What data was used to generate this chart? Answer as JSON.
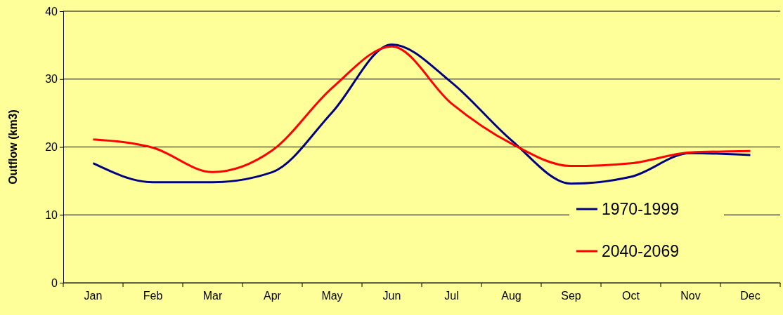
{
  "chart_data": {
    "type": "line",
    "ylabel": "Outflow (km3)",
    "categories": [
      "Jan",
      "Feb",
      "Mar",
      "Apr",
      "May",
      "Jun",
      "Jul",
      "Aug",
      "Sep",
      "Oct",
      "Nov",
      "Dec"
    ],
    "series": [
      {
        "name": "1970-1999",
        "color": "#000080",
        "values": [
          17.6,
          14.8,
          14.8,
          16.3,
          25.1,
          35.1,
          29.5,
          21.0,
          14.6,
          15.6,
          19.1,
          18.8
        ]
      },
      {
        "name": "2040-2069",
        "color": "#ff0000",
        "values": [
          21.1,
          19.9,
          16.3,
          19.5,
          28.7,
          34.8,
          26.4,
          20.5,
          17.2,
          17.6,
          19.2,
          19.4
        ]
      }
    ],
    "ylim": [
      0,
      40
    ],
    "yticks": [
      0,
      10,
      20,
      30,
      40
    ],
    "grid": "y",
    "legend": "bottom right",
    "marker": "none",
    "line_style": "solid"
  }
}
